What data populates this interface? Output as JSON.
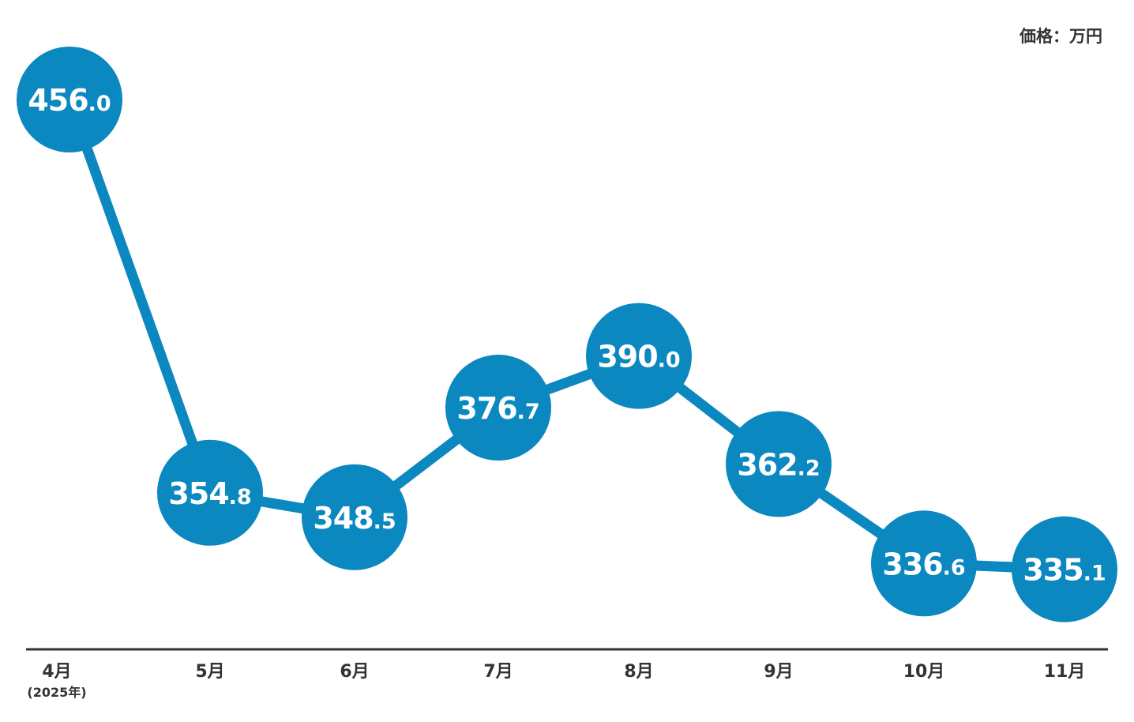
{
  "unit_label": "価格：万円",
  "colors": {
    "series": "#0a88bf",
    "axis": "#333333",
    "label": "#ffffff"
  },
  "chart_data": {
    "type": "line",
    "categories": [
      "4月",
      "5月",
      "6月",
      "7月",
      "8月",
      "9月",
      "10月",
      "11月"
    ],
    "category_sublabels": [
      "(2025年)",
      "",
      "",
      "",
      "",
      "",
      "",
      ""
    ],
    "values": [
      456.0,
      354.8,
      348.5,
      376.7,
      390.0,
      362.2,
      336.6,
      335.1
    ],
    "data_labels": [
      "456.0",
      "354.8",
      "348.5",
      "376.7",
      "390.0",
      "362.2",
      "336.6",
      "335.1"
    ],
    "unit": "価格：万円",
    "grid": false,
    "legend": "none"
  }
}
